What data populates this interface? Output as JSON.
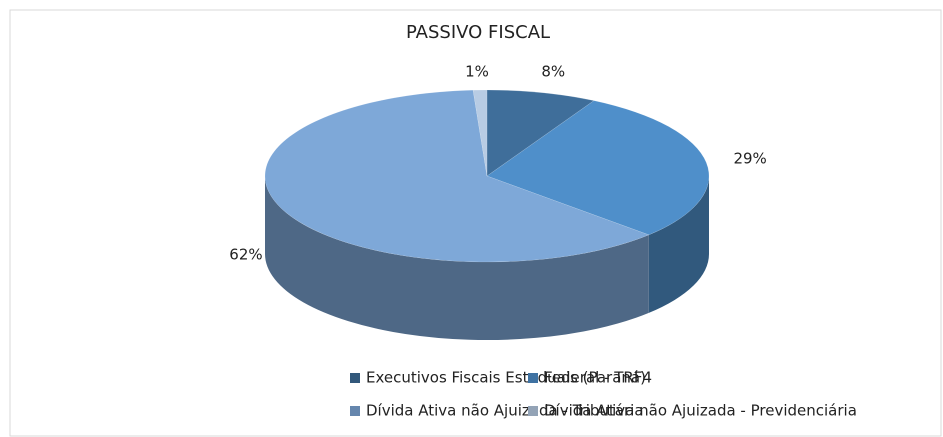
{
  "chart_data": {
    "type": "pie3d",
    "title": "PASSIVO FISCAL",
    "categories": [
      "Executivos Fiscais Estaduais (Paraná)",
      "Federal - TRF4",
      "Dívida Ativa não Ajuizada - Tributária",
      "Dívida Ativa não Ajuizada - Previdenciária"
    ],
    "values": [
      8,
      29,
      62,
      1
    ],
    "value_labels": [
      "8%",
      "29%",
      "62%",
      "1%"
    ],
    "colors": [
      "#3f6e9a",
      "#4f8fca",
      "#7ea8d8",
      "#b8cce4"
    ],
    "legend": "bottom"
  }
}
